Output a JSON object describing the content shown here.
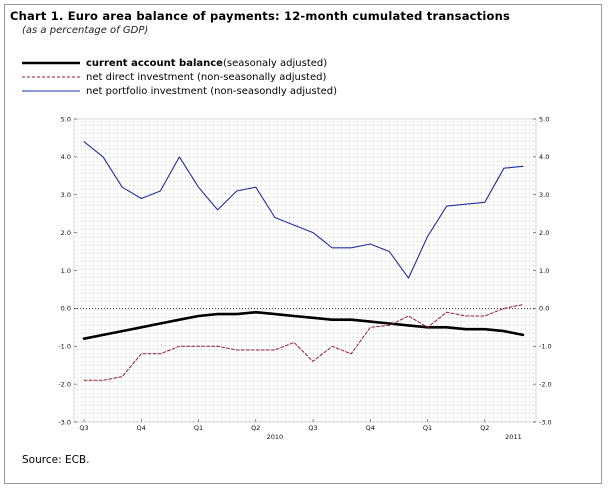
{
  "title": "Chart 1. Euro area balance of payments: 12-month cumulated transactions",
  "subtitle": "(as a percentage of GDP)",
  "source": "Source: ECB.",
  "chart_data": {
    "type": "line",
    "legend": [
      {
        "label_bold": "current account balance",
        "label_rest": " (seasonaly adjusted)",
        "color": "#000000",
        "style": "solid-thick"
      },
      {
        "label_bold": "",
        "label_rest": "net direct investment (non-seasonally adjusted)",
        "color": "#9a1a2a",
        "style": "dashed"
      },
      {
        "label_bold": "",
        "label_rest": "net portfolio investment (non-seasondly adjusted)",
        "color": "#1f2fa0",
        "style": "solid"
      }
    ],
    "y_ticks": [
      "5.0",
      "4.0",
      "3.0",
      "2.0",
      "1.0",
      "0.0",
      "-1.0",
      "-2.0",
      "-3.0"
    ],
    "y_tick_values": [
      5,
      4,
      3,
      2,
      1,
      0,
      -1,
      -2,
      -3
    ],
    "ylim": [
      -3,
      5
    ],
    "x_labels": [
      {
        "label": "Q3",
        "index": 0
      },
      {
        "label": "Q4",
        "index": 3
      },
      {
        "label": "Q1",
        "index": 6
      },
      {
        "label": "Q2",
        "index": 9
      },
      {
        "label": "Q3",
        "index": 12
      },
      {
        "label": "Q4",
        "index": 15
      },
      {
        "label": "Q1",
        "index": 18
      },
      {
        "label": "Q2",
        "index": 21
      }
    ],
    "year_labels": [
      {
        "label": "2010",
        "index": 10
      },
      {
        "label": "2011",
        "index": 22.5
      }
    ],
    "n_points": 24,
    "series": [
      {
        "name": "current account balance",
        "color": "#000000",
        "values": [
          -0.8,
          -0.7,
          -0.6,
          -0.5,
          -0.4,
          -0.3,
          -0.2,
          -0.15,
          -0.15,
          -0.1,
          -0.15,
          -0.2,
          -0.25,
          -0.3,
          -0.3,
          -0.35,
          -0.4,
          -0.45,
          -0.5,
          -0.5,
          -0.55,
          -0.55,
          -0.6,
          -0.7
        ]
      },
      {
        "name": "net direct investment",
        "color": "#9a1a2a",
        "values": [
          -1.9,
          -1.9,
          -1.8,
          -1.2,
          -1.2,
          -1.0,
          -1.0,
          -1.0,
          -1.1,
          -1.1,
          -1.1,
          -0.9,
          -1.4,
          -1.0,
          -1.2,
          -0.5,
          -0.45,
          -0.2,
          -0.5,
          -0.1,
          -0.2,
          -0.2,
          0.0,
          0.1
        ]
      },
      {
        "name": "net portfolio investment",
        "color": "#1f2fa0",
        "values": [
          4.4,
          4.0,
          3.2,
          2.9,
          3.1,
          4.0,
          3.2,
          2.6,
          3.1,
          3.2,
          2.4,
          2.2,
          2.0,
          1.6,
          1.6,
          1.7,
          1.5,
          0.8,
          1.9,
          2.7,
          2.75,
          2.8,
          3.7,
          3.75
        ]
      }
    ],
    "reference_line": {
      "value": 0.0,
      "color": "#000000",
      "style": "dotted"
    }
  }
}
